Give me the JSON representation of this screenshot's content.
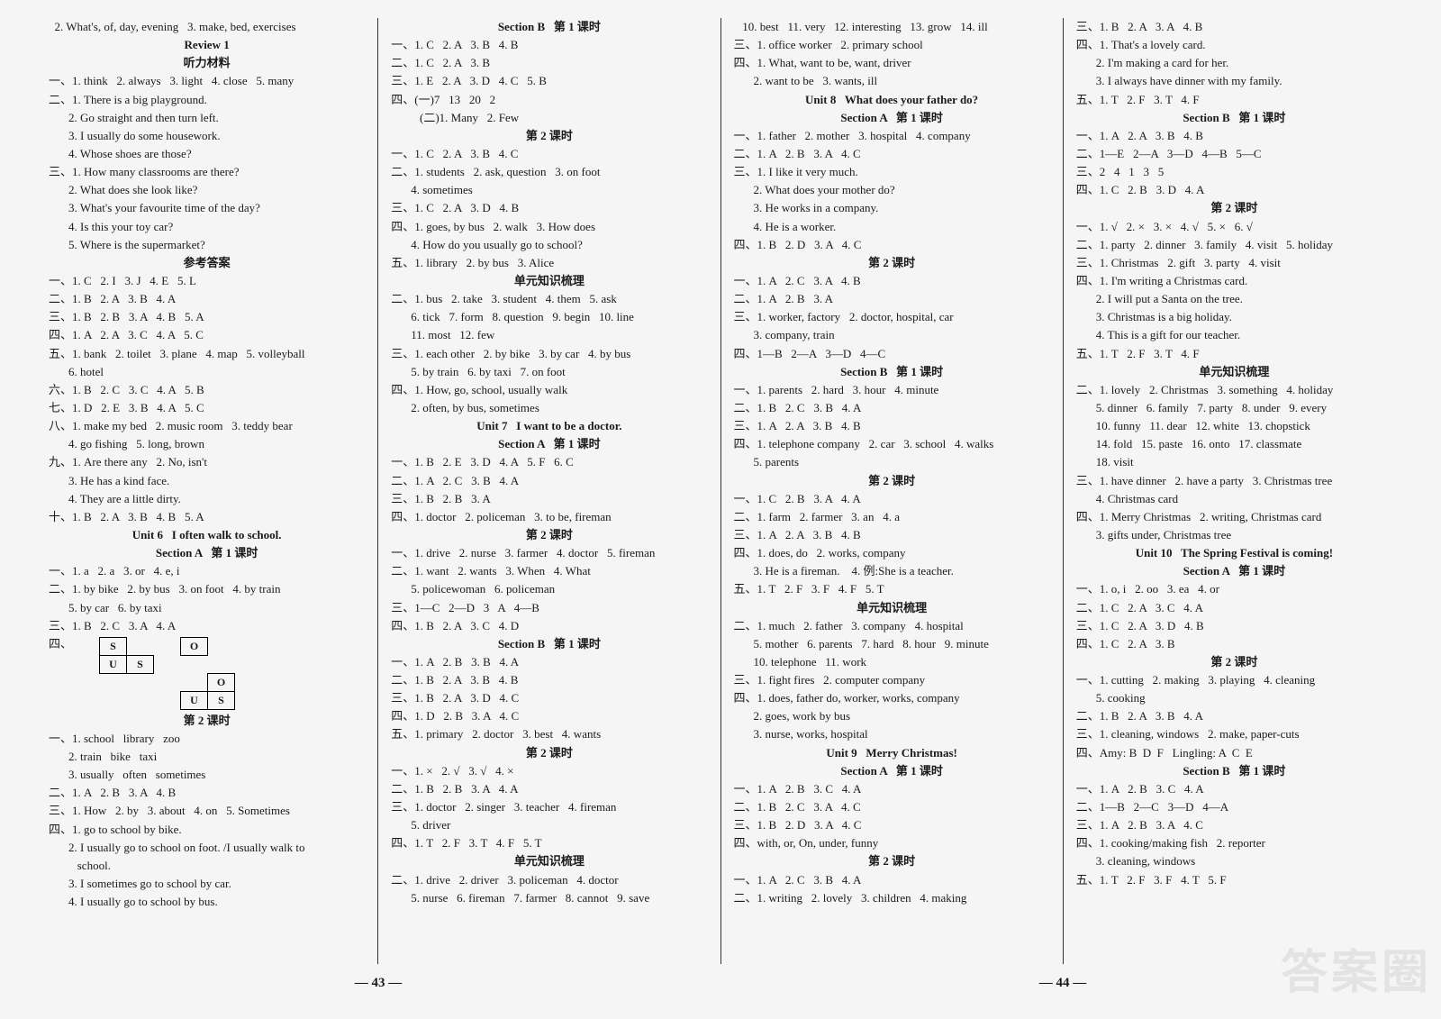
{
  "watermark": "答案圈",
  "footer": {
    "left": "— 43 —",
    "right": "— 44 —"
  },
  "columns": [
    {
      "lines": [
        {
          "t": "  2. What's, of, day, evening   3. make, bed, exercises"
        },
        {
          "t": "Review 1",
          "cls": "center"
        },
        {
          "t": "听力材料",
          "cls": "center"
        },
        {
          "t": "一、1. think   2. always   3. light   4. close   5. many"
        },
        {
          "t": "二、1. There is a big playground."
        },
        {
          "t": "2. Go straight and then turn left.",
          "cls": "indent"
        },
        {
          "t": "3. I usually do some housework.",
          "cls": "indent"
        },
        {
          "t": "4. Whose shoes are those?",
          "cls": "indent"
        },
        {
          "t": "三、1. How many classrooms are there?"
        },
        {
          "t": "2. What does she look like?",
          "cls": "indent"
        },
        {
          "t": "3. What's your favourite time of the day?",
          "cls": "indent"
        },
        {
          "t": "4. Is this your toy car?",
          "cls": "indent"
        },
        {
          "t": "5. Where is the supermarket?",
          "cls": "indent"
        },
        {
          "t": "参考答案",
          "cls": "center"
        },
        {
          "t": "一、1. C   2. I   3. J   4. E   5. L"
        },
        {
          "t": "二、1. B   2. A   3. B   4. A"
        },
        {
          "t": "三、1. B   2. B   3. A   4. B   5. A"
        },
        {
          "t": "四、1. A   2. A   3. C   4. A   5. C"
        },
        {
          "t": "五、1. bank   2. toilet   3. plane   4. map   5. volleyball"
        },
        {
          "t": "6. hotel",
          "cls": "indent"
        },
        {
          "t": "六、1. B   2. C   3. C   4. A   5. B"
        },
        {
          "t": "七、1. D   2. E   3. B   4. A   5. C"
        },
        {
          "t": "八、1. make my bed   2. music room   3. teddy bear"
        },
        {
          "t": "4. go fishing   5. long, brown",
          "cls": "indent"
        },
        {
          "t": "九、1. Are there any   2. No, isn't"
        },
        {
          "t": "3. He has a kind face.",
          "cls": "indent"
        },
        {
          "t": "4. They are a little dirty.",
          "cls": "indent"
        },
        {
          "t": "十、1. B   2. A   3. B   4. B   5. A"
        },
        {
          "t": "Unit 6   I often walk to school.",
          "cls": "center"
        },
        {
          "t": "Section A   第 1 课时",
          "cls": "center"
        },
        {
          "t": "一、1. a   2. a   3. or   4. e, i"
        },
        {
          "t": "二、1. by bike   2. by bus   3. on foot   4. by train"
        },
        {
          "t": "5. by car   6. by taxi",
          "cls": "indent"
        },
        {
          "t": "三、1. B   2. C   3. A   4. A"
        },
        {
          "crosslabel": "四、",
          "cross": [
            [
              "S",
              "",
              "",
              "O",
              ""
            ],
            [
              "U",
              "S",
              "",
              "",
              ""
            ],
            [
              "",
              "",
              "",
              "",
              "O"
            ],
            [
              "",
              "",
              "",
              "U",
              "S"
            ]
          ]
        },
        {
          "t": "第 2 课时",
          "cls": "center"
        },
        {
          "t": "一、1. school   library   zoo"
        },
        {
          "t": "2. train   bike   taxi",
          "cls": "indent"
        },
        {
          "t": "3. usually   often   sometimes",
          "cls": "indent"
        },
        {
          "t": "二、1. A   2. B   3. A   4. B"
        },
        {
          "t": "三、1. How   2. by   3. about   4. on   5. Sometimes"
        },
        {
          "t": "四、1. go to school by bike."
        },
        {
          "t": "2. I usually go to school on foot. /I usually walk to",
          "cls": "indent"
        },
        {
          "t": "   school.",
          "cls": "indent"
        },
        {
          "t": "3. I sometimes go to school by car.",
          "cls": "indent"
        },
        {
          "t": "4. I usually go to school by bus.",
          "cls": "indent"
        }
      ]
    },
    {
      "lines": [
        {
          "t": "Section B   第 1 课时",
          "cls": "center"
        },
        {
          "t": "一、1. C   2. A   3. B   4. B"
        },
        {
          "t": "二、1. C   2. A   3. B"
        },
        {
          "t": "三、1. E   2. A   3. D   4. C   5. B"
        },
        {
          "t": "四、(一)7   13   20   2"
        },
        {
          "t": "   (二)1. Many   2. Few",
          "cls": "indent"
        },
        {
          "t": "第 2 课时",
          "cls": "center"
        },
        {
          "t": "一、1. C   2. A   3. B   4. C"
        },
        {
          "t": "二、1. students   2. ask, question   3. on foot"
        },
        {
          "t": "4. sometimes",
          "cls": "indent"
        },
        {
          "t": "三、1. C   2. A   3. D   4. B"
        },
        {
          "t": "四、1. goes, by bus   2. walk   3. How does"
        },
        {
          "t": "4. How do you usually go to school?",
          "cls": "indent"
        },
        {
          "t": "五、1. library   2. by bus   3. Alice"
        },
        {
          "t": "单元知识梳理",
          "cls": "center"
        },
        {
          "t": "二、1. bus   2. take   3. student   4. them   5. ask"
        },
        {
          "t": "6. tick   7. form   8. question   9. begin   10. line",
          "cls": "indent"
        },
        {
          "t": "11. most   12. few",
          "cls": "indent"
        },
        {
          "t": "三、1. each other   2. by bike   3. by car   4. by bus"
        },
        {
          "t": "5. by train   6. by taxi   7. on foot",
          "cls": "indent"
        },
        {
          "t": "四、1. How, go, school, usually walk"
        },
        {
          "t": "2. often, by bus, sometimes",
          "cls": "indent"
        },
        {
          "t": "Unit 7   I want to be a doctor.",
          "cls": "center"
        },
        {
          "t": "Section A   第 1 课时",
          "cls": "center"
        },
        {
          "t": "一、1. B   2. E   3. D   4. A   5. F   6. C"
        },
        {
          "t": "二、1. A   2. C   3. B   4. A"
        },
        {
          "t": "三、1. B   2. B   3. A"
        },
        {
          "t": "四、1. doctor   2. policeman   3. to be, fireman"
        },
        {
          "t": "第 2 课时",
          "cls": "center"
        },
        {
          "t": "一、1. drive   2. nurse   3. farmer   4. doctor   5. fireman"
        },
        {
          "t": "二、1. want   2. wants   3. When   4. What"
        },
        {
          "t": "5. policewoman   6. policeman",
          "cls": "indent"
        },
        {
          "t": "三、1—C   2—D   3   A   4—B"
        },
        {
          "t": "四、1. B   2. A   3. C   4. D"
        },
        {
          "t": "Section B   第 1 课时",
          "cls": "center"
        },
        {
          "t": "一、1. A   2. B   3. B   4. A"
        },
        {
          "t": "二、1. B   2. A   3. B   4. B"
        },
        {
          "t": "三、1. B   2. A   3. D   4. C"
        },
        {
          "t": "四、1. D   2. B   3. A   4. C"
        },
        {
          "t": "五、1. primary   2. doctor   3. best   4. wants"
        },
        {
          "t": "第 2 课时",
          "cls": "center"
        },
        {
          "t": "一、1. ×   2. √   3. √   4. ×"
        },
        {
          "t": "二、1. B   2. B   3. A   4. A"
        },
        {
          "t": "三、1. doctor   2. singer   3. teacher   4. fireman"
        },
        {
          "t": "5. driver",
          "cls": "indent"
        },
        {
          "t": "四、1. T   2. F   3. T   4. F   5. T"
        },
        {
          "t": "单元知识梳理",
          "cls": "center"
        },
        {
          "t": "二、1. drive   2. driver   3. policeman   4. doctor"
        },
        {
          "t": "5. nurse   6. fireman   7. farmer   8. cannot   9. save",
          "cls": "indent"
        }
      ]
    },
    {
      "lines": [
        {
          "t": "   10. best   11. very   12. interesting   13. grow   14. ill"
        },
        {
          "t": "三、1. office worker   2. primary school"
        },
        {
          "t": "四、1. What, want to be, want, driver"
        },
        {
          "t": "2. want to be   3. wants, ill",
          "cls": "indent"
        },
        {
          "t": "Unit 8   What does your father do?",
          "cls": "center"
        },
        {
          "t": "Section A   第 1 课时",
          "cls": "center"
        },
        {
          "t": "一、1. father   2. mother   3. hospital   4. company"
        },
        {
          "t": "二、1. A   2. B   3. A   4. C"
        },
        {
          "t": "三、1. I like it very much."
        },
        {
          "t": "2. What does your mother do?",
          "cls": "indent"
        },
        {
          "t": "3. He works in a company.",
          "cls": "indent"
        },
        {
          "t": "4. He is a worker.",
          "cls": "indent"
        },
        {
          "t": "四、1. B   2. D   3. A   4. C"
        },
        {
          "t": "第 2 课时",
          "cls": "center"
        },
        {
          "t": "一、1. A   2. C   3. A   4. B"
        },
        {
          "t": "二、1. A   2. B   3. A"
        },
        {
          "t": "三、1. worker, factory   2. doctor, hospital, car"
        },
        {
          "t": "3. company, train",
          "cls": "indent"
        },
        {
          "t": "四、1—B   2—A   3—D   4—C"
        },
        {
          "t": "Section B   第 1 课时",
          "cls": "center"
        },
        {
          "t": "一、1. parents   2. hard   3. hour   4. minute"
        },
        {
          "t": "二、1. B   2. C   3. B   4. A"
        },
        {
          "t": "三、1. A   2. A   3. B   4. B"
        },
        {
          "t": "四、1. telephone company   2. car   3. school   4. walks"
        },
        {
          "t": "5. parents",
          "cls": "indent"
        },
        {
          "t": "第 2 课时",
          "cls": "center"
        },
        {
          "t": "一、1. C   2. B   3. A   4. A"
        },
        {
          "t": "二、1. farm   2. farmer   3. an   4. a"
        },
        {
          "t": "三、1. A   2. A   3. B   4. B"
        },
        {
          "t": "四、1. does, do   2. works, company"
        },
        {
          "t": "3. He is a fireman.    4. 例:She is a teacher.",
          "cls": "indent"
        },
        {
          "t": "五、1. T   2. F   3. F   4. F   5. T"
        },
        {
          "t": "单元知识梳理",
          "cls": "center"
        },
        {
          "t": "二、1. much   2. father   3. company   4. hospital"
        },
        {
          "t": "5. mother   6. parents   7. hard   8. hour   9. minute",
          "cls": "indent"
        },
        {
          "t": "10. telephone   11. work",
          "cls": "indent"
        },
        {
          "t": "三、1. fight fires   2. computer company"
        },
        {
          "t": "四、1. does, father do, worker, works, company"
        },
        {
          "t": "2. goes, work by bus",
          "cls": "indent"
        },
        {
          "t": "3. nurse, works, hospital",
          "cls": "indent"
        },
        {
          "t": "Unit 9   Merry Christmas!",
          "cls": "center"
        },
        {
          "t": "Section A   第 1 课时",
          "cls": "center"
        },
        {
          "t": "一、1. A   2. B   3. C   4. A"
        },
        {
          "t": "二、1. B   2. C   3. A   4. C"
        },
        {
          "t": "三、1. B   2. D   3. A   4. C"
        },
        {
          "t": "四、with, or, On, under, funny"
        },
        {
          "t": "第 2 课时",
          "cls": "center"
        },
        {
          "t": "一、1. A   2. C   3. B   4. A"
        },
        {
          "t": "二、1. writing   2. lovely   3. children   4. making"
        }
      ]
    },
    {
      "lines": [
        {
          "t": "三、1. B   2. A   3. A   4. B"
        },
        {
          "t": "四、1. That's a lovely card."
        },
        {
          "t": "2. I'm making a card for her.",
          "cls": "indent"
        },
        {
          "t": "3. I always have dinner with my family.",
          "cls": "indent"
        },
        {
          "t": "五、1. T   2. F   3. T   4. F"
        },
        {
          "t": "Section B   第 1 课时",
          "cls": "center"
        },
        {
          "t": "一、1. A   2. A   3. B   4. B"
        },
        {
          "t": "二、1—E   2—A   3—D   4—B   5—C"
        },
        {
          "t": "三、2   4   1   3   5"
        },
        {
          "t": "四、1. C   2. B   3. D   4. A"
        },
        {
          "t": "第 2 课时",
          "cls": "center"
        },
        {
          "t": "一、1. √   2. ×   3. ×   4. √   5. ×   6. √"
        },
        {
          "t": "二、1. party   2. dinner   3. family   4. visit   5. holiday"
        },
        {
          "t": "三、1. Christmas   2. gift   3. party   4. visit"
        },
        {
          "t": "四、1. I'm writing a Christmas card."
        },
        {
          "t": "2. I will put a Santa on the tree.",
          "cls": "indent"
        },
        {
          "t": "3. Christmas is a big holiday.",
          "cls": "indent"
        },
        {
          "t": "4. This is a gift for our teacher.",
          "cls": "indent"
        },
        {
          "t": "五、1. T   2. F   3. T   4. F"
        },
        {
          "t": "单元知识梳理",
          "cls": "center"
        },
        {
          "t": "二、1. lovely   2. Christmas   3. something   4. holiday"
        },
        {
          "t": "5. dinner   6. family   7. party   8. under   9. every",
          "cls": "indent"
        },
        {
          "t": "10. funny   11. dear   12. white   13. chopstick",
          "cls": "indent"
        },
        {
          "t": "14. fold   15. paste   16. onto   17. classmate",
          "cls": "indent"
        },
        {
          "t": "18. visit",
          "cls": "indent"
        },
        {
          "t": "三、1. have dinner   2. have a party   3. Christmas tree"
        },
        {
          "t": "4. Christmas card",
          "cls": "indent"
        },
        {
          "t": "四、1. Merry Christmas   2. writing, Christmas card"
        },
        {
          "t": "3. gifts under, Christmas tree",
          "cls": "indent"
        },
        {
          "t": "Unit 10   The Spring Festival is coming!",
          "cls": "center"
        },
        {
          "t": "Section A   第 1 课时",
          "cls": "center"
        },
        {
          "t": "一、1. o, i   2. oo   3. ea   4. or"
        },
        {
          "t": "二、1. C   2. A   3. C   4. A"
        },
        {
          "t": "三、1. C   2. A   3. D   4. B"
        },
        {
          "t": "四、1. C   2. A   3. B"
        },
        {
          "t": "第 2 课时",
          "cls": "center"
        },
        {
          "t": "一、1. cutting   2. making   3. playing   4. cleaning"
        },
        {
          "t": "5. cooking",
          "cls": "indent"
        },
        {
          "t": "二、1. B   2. A   3. B   4. A"
        },
        {
          "t": "三、1. cleaning, windows   2. make, paper-cuts"
        },
        {
          "t": "四、Amy: B  D  F   Lingling: A  C  E"
        },
        {
          "t": "Section B   第 1 课时",
          "cls": "center"
        },
        {
          "t": "一、1. A   2. B   3. C   4. A"
        },
        {
          "t": "二、1—B   2—C   3—D   4—A"
        },
        {
          "t": "三、1. A   2. B   3. A   4. C"
        },
        {
          "t": "四、1. cooking/making fish   2. reporter"
        },
        {
          "t": "3. cleaning, windows",
          "cls": "indent"
        },
        {
          "t": "五、1. T   2. F   3. F   4. T   5. F"
        }
      ]
    }
  ]
}
